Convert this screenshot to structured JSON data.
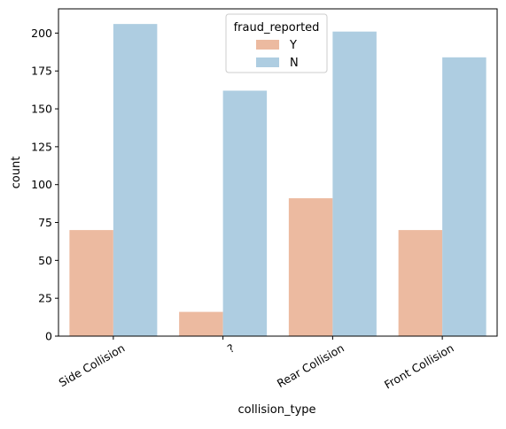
{
  "chart_data": {
    "type": "bar",
    "title": "",
    "xlabel": "collision_type",
    "ylabel": "count",
    "categories": [
      "Side Collision",
      "?",
      "Rear Collision",
      "Front Collision"
    ],
    "series": [
      {
        "name": "Y",
        "values": [
          70,
          16,
          91,
          70
        ],
        "color": "#ecbaa0"
      },
      {
        "name": "N",
        "values": [
          206,
          162,
          201,
          184
        ],
        "color": "#aecde1"
      }
    ],
    "ylim": [
      0,
      216
    ],
    "yticks": [
      0,
      25,
      50,
      75,
      100,
      125,
      150,
      175,
      200
    ],
    "x_tick_rotation": 30,
    "grid": false,
    "legend": {
      "title": "fraud_reported",
      "placement": "top-center"
    }
  }
}
